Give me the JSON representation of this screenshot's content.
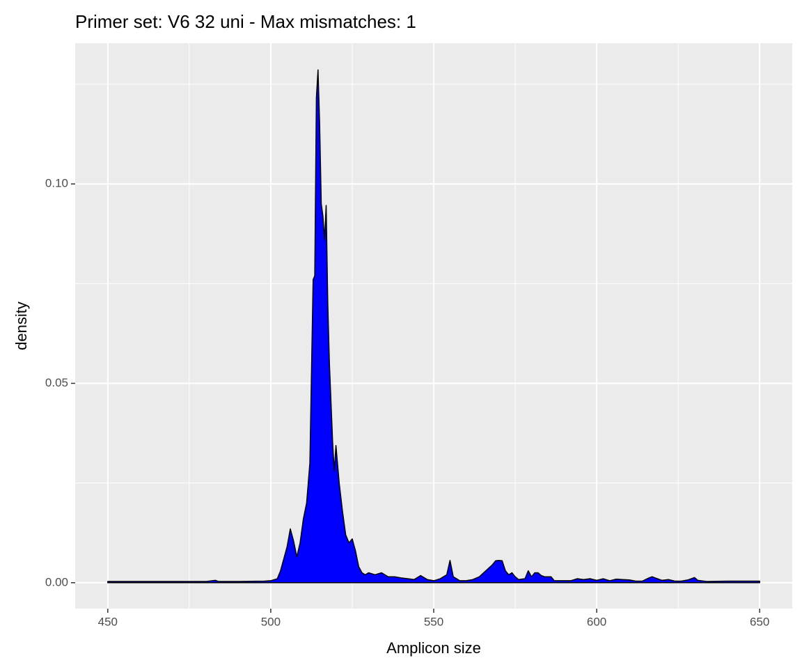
{
  "chart_data": {
    "type": "area",
    "title": "Primer set: V6 32 uni - Max mismatches: 1",
    "xlabel": "Amplicon size",
    "ylabel": "density",
    "x": [
      450,
      460,
      470,
      480,
      483,
      484,
      490,
      498,
      500,
      502,
      503,
      504,
      505,
      506,
      507,
      508,
      509,
      510,
      511,
      512,
      513,
      513.5,
      514,
      514.5,
      515,
      515.5,
      516,
      516.5,
      517,
      517.5,
      518,
      519,
      519.5,
      520,
      521,
      522,
      523,
      524,
      525,
      526,
      527,
      528,
      529,
      530,
      532,
      534,
      536,
      538,
      540,
      542,
      544,
      546,
      548,
      550,
      552,
      554,
      555,
      556,
      558,
      560,
      562,
      564,
      566,
      568,
      569,
      570,
      571,
      572,
      573,
      574,
      575,
      576,
      578,
      579,
      580,
      581,
      582,
      583,
      584,
      586,
      587,
      590,
      592,
      594,
      596,
      598,
      600,
      602,
      604,
      606,
      608,
      610,
      612,
      614,
      616,
      617,
      618,
      620,
      622,
      624,
      626,
      628,
      630,
      631,
      634,
      640,
      645,
      650
    ],
    "values": [
      0.0003,
      0.0003,
      0.0003,
      0.0003,
      0.0006,
      0.0003,
      0.0003,
      0.0004,
      0.0005,
      0.001,
      0.003,
      0.006,
      0.009,
      0.0135,
      0.0105,
      0.0065,
      0.01,
      0.016,
      0.02,
      0.03,
      0.076,
      0.077,
      0.1216,
      0.1286,
      0.115,
      0.095,
      0.092,
      0.086,
      0.0946,
      0.07,
      0.055,
      0.035,
      0.028,
      0.0344,
      0.025,
      0.018,
      0.012,
      0.01,
      0.011,
      0.008,
      0.004,
      0.0025,
      0.002,
      0.0025,
      0.002,
      0.0025,
      0.0015,
      0.0015,
      0.0012,
      0.001,
      0.0008,
      0.0018,
      0.0008,
      0.0005,
      0.001,
      0.002,
      0.0056,
      0.0015,
      0.0005,
      0.0005,
      0.0008,
      0.0015,
      0.003,
      0.0045,
      0.0055,
      0.0056,
      0.0055,
      0.003,
      0.002,
      0.0025,
      0.0015,
      0.0008,
      0.001,
      0.003,
      0.0015,
      0.0025,
      0.0025,
      0.0018,
      0.0015,
      0.0015,
      0.0005,
      0.0005,
      0.0005,
      0.001,
      0.0008,
      0.001,
      0.0006,
      0.001,
      0.0005,
      0.0009,
      0.0008,
      0.0007,
      0.0004,
      0.0004,
      0.0012,
      0.0015,
      0.0012,
      0.0006,
      0.0008,
      0.0004,
      0.0004,
      0.0007,
      0.0013,
      0.0006,
      0.0003,
      0.0004,
      0.0004,
      0.0004
    ],
    "color": "#0000ff",
    "line_color": "#000000",
    "xlim": [
      440,
      660
    ],
    "xticks": [
      450,
      500,
      550,
      600,
      650
    ],
    "xminor": [
      475,
      525,
      575,
      625
    ],
    "ylim": [
      -0.0065,
      0.1353
    ],
    "yticks": [
      {
        "value": 0,
        "label": "0.00"
      },
      {
        "value": 0.05,
        "label": "0.05"
      },
      {
        "value": 0.1,
        "label": "0.10"
      }
    ],
    "yminor": [
      0.025,
      0.075,
      0.125
    ],
    "grid": true
  }
}
